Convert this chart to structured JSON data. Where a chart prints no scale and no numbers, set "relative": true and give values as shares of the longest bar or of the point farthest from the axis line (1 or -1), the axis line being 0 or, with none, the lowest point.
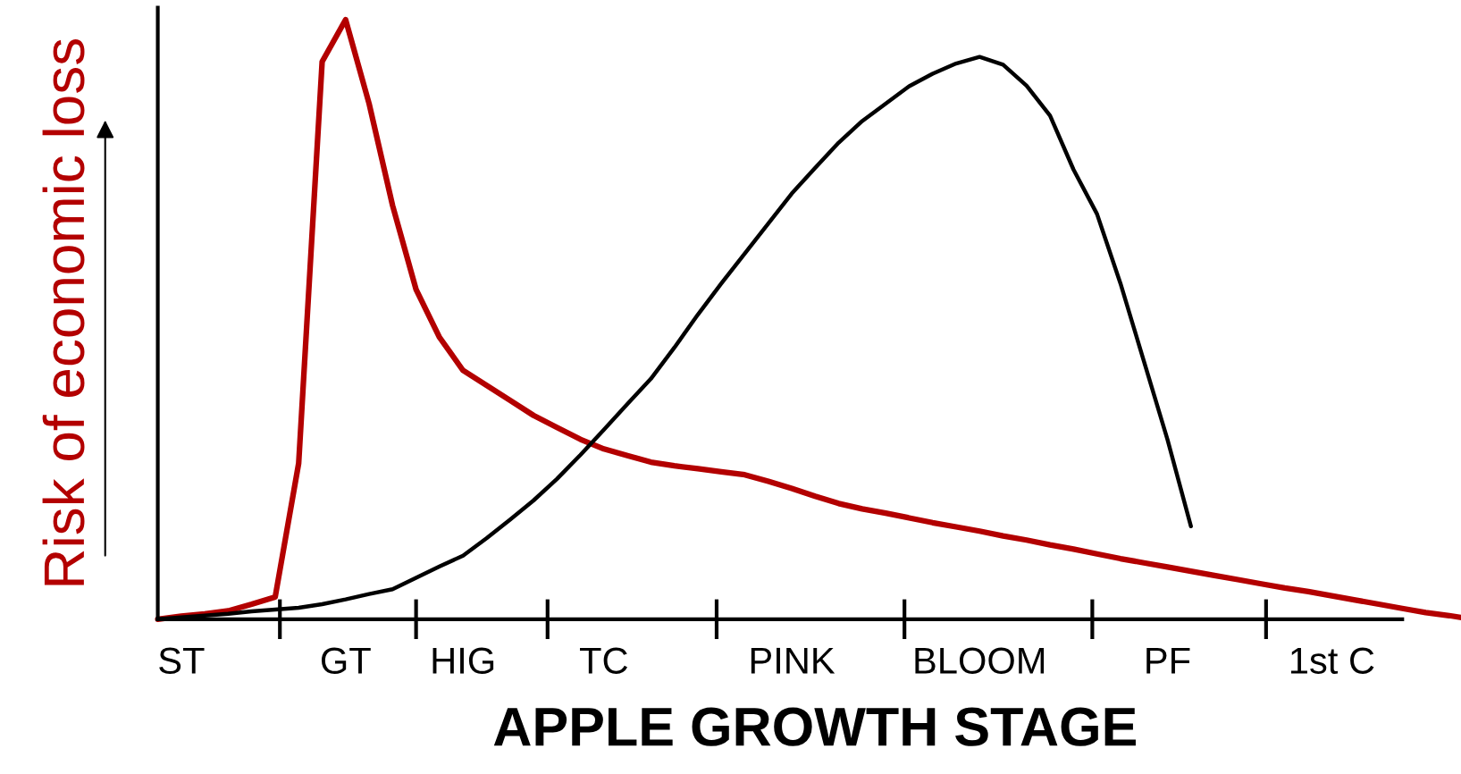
{
  "chart_data": {
    "type": "line",
    "relative": true,
    "xlabel": "APPLE GROWTH STAGE",
    "ylabel": "Risk of economic loss",
    "categories": [
      null,
      "ST",
      null,
      null,
      null,
      null,
      null,
      null,
      "GT",
      null,
      null,
      null,
      null,
      "HIG",
      null,
      null,
      null,
      null,
      null,
      "TC",
      null,
      null,
      null,
      null,
      null,
      null,
      null,
      "PINK",
      null,
      null,
      null,
      null,
      null,
      null,
      null,
      "BLOOM",
      null,
      null,
      null,
      null,
      null,
      null,
      null,
      "PF",
      null,
      null,
      null,
      null,
      null,
      null,
      "1st C",
      null,
      null,
      null,
      null,
      null,
      null
    ],
    "tick_labels": "x",
    "grid": false,
    "marker": "none",
    "line_style": "solid",
    "series": [
      {
        "color": "#b30000",
        "values": [
          0,
          0.005,
          0.009,
          0.014,
          0.025,
          0.037,
          0.26,
          0.93,
          1,
          0.86,
          0.69,
          0.55,
          0.47,
          0.415,
          0.39,
          0.365,
          0.34,
          0.32,
          0.3,
          0.284,
          0.273,
          0.262,
          0.256,
          0.251,
          0.246,
          0.241,
          0.23,
          0.218,
          0.205,
          0.193,
          0.184,
          0.177,
          0.169,
          0.161,
          0.154,
          0.147,
          0.139,
          0.132,
          0.124,
          0.117,
          0.109,
          0.101,
          0.094,
          0.087,
          0.08,
          0.073,
          0.066,
          0.059,
          0.052,
          0.046,
          0.039,
          0.032,
          0.025,
          0.018,
          0.011,
          0.006,
          0
        ]
      },
      {
        "color": "#000000",
        "values": [
          0,
          0.003,
          0.006,
          0.009,
          0.013,
          0.016,
          0.019,
          0.025,
          0.033,
          0.042,
          0.05,
          0.069,
          0.088,
          0.106,
          0.135,
          0.166,
          0.198,
          0.234,
          0.274,
          0.316,
          0.359,
          0.401,
          0.453,
          0.508,
          0.56,
          0.61,
          0.66,
          0.71,
          0.753,
          0.795,
          0.831,
          0.86,
          0.889,
          0.91,
          0.927,
          0.938,
          0.925,
          0.89,
          0.84,
          0.75,
          0.676,
          0.56,
          0.43,
          0.3,
          0.155,
          null,
          null,
          null,
          null,
          null,
          null,
          null,
          null,
          null,
          null,
          null,
          null
        ]
      }
    ]
  }
}
